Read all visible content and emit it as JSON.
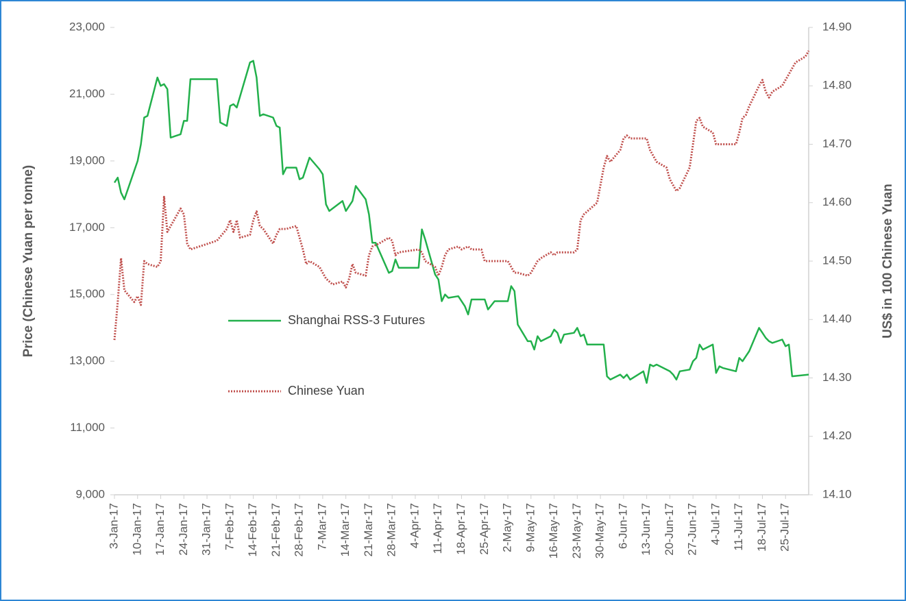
{
  "chart_data": {
    "type": "line",
    "y_label": "Price (Chinese Yuan per tonne)",
    "y2_label": "US$ in 100 Chinese Yuan",
    "xlim": [
      "2017-01-03",
      "2017-08-01"
    ],
    "xticks": [
      {
        "value": "2017-01-03",
        "label": "3-Jan-17"
      },
      {
        "value": "2017-01-10",
        "label": "10-Jan-17"
      },
      {
        "value": "2017-01-17",
        "label": "17-Jan-17"
      },
      {
        "value": "2017-01-24",
        "label": "24-Jan-17"
      },
      {
        "value": "2017-01-31",
        "label": "31-Jan-17"
      },
      {
        "value": "2017-02-07",
        "label": "7-Feb-17"
      },
      {
        "value": "2017-02-14",
        "label": "14-Feb-17"
      },
      {
        "value": "2017-02-21",
        "label": "21-Feb-17"
      },
      {
        "value": "2017-02-28",
        "label": "28-Feb-17"
      },
      {
        "value": "2017-03-07",
        "label": "7-Mar-17"
      },
      {
        "value": "2017-03-14",
        "label": "14-Mar-17"
      },
      {
        "value": "2017-03-21",
        "label": "21-Mar-17"
      },
      {
        "value": "2017-03-28",
        "label": "28-Mar-17"
      },
      {
        "value": "2017-04-04",
        "label": "4-Apr-17"
      },
      {
        "value": "2017-04-11",
        "label": "11-Apr-17"
      },
      {
        "value": "2017-04-18",
        "label": "18-Apr-17"
      },
      {
        "value": "2017-04-25",
        "label": "25-Apr-17"
      },
      {
        "value": "2017-05-02",
        "label": "2-May-17"
      },
      {
        "value": "2017-05-09",
        "label": "9-May-17"
      },
      {
        "value": "2017-05-16",
        "label": "16-May-17"
      },
      {
        "value": "2017-05-23",
        "label": "23-May-17"
      },
      {
        "value": "2017-05-30",
        "label": "30-May-17"
      },
      {
        "value": "2017-06-06",
        "label": "6-Jun-17"
      },
      {
        "value": "2017-06-13",
        "label": "13-Jun-17"
      },
      {
        "value": "2017-06-20",
        "label": "20-Jun-17"
      },
      {
        "value": "2017-06-27",
        "label": "27-Jun-17"
      },
      {
        "value": "2017-07-04",
        "label": "4-Jul-17"
      },
      {
        "value": "2017-07-11",
        "label": "11-Jul-17"
      },
      {
        "value": "2017-07-18",
        "label": "18-Jul-17"
      },
      {
        "value": "2017-07-25",
        "label": "25-Jul-17"
      }
    ],
    "ylim": [
      9000,
      23000
    ],
    "yticks": [
      {
        "value": 9000,
        "label": "9,000"
      },
      {
        "value": 11000,
        "label": "11,000"
      },
      {
        "value": 13000,
        "label": "13,000"
      },
      {
        "value": 15000,
        "label": "15,000"
      },
      {
        "value": 17000,
        "label": "17,000"
      },
      {
        "value": 19000,
        "label": "19,000"
      },
      {
        "value": 21000,
        "label": "21,000"
      },
      {
        "value": 23000,
        "label": "23,000"
      }
    ],
    "y2lim": [
      14.1,
      14.9
    ],
    "y2ticks": [
      {
        "value": 14.1,
        "label": "14.10"
      },
      {
        "value": 14.2,
        "label": "14.20"
      },
      {
        "value": 14.3,
        "label": "14.30"
      },
      {
        "value": 14.4,
        "label": "14.40"
      },
      {
        "value": 14.5,
        "label": "14.50"
      },
      {
        "value": 14.6,
        "label": "14.60"
      },
      {
        "value": 14.7,
        "label": "14.70"
      },
      {
        "value": 14.8,
        "label": "14.80"
      },
      {
        "value": 14.9,
        "label": "14.90"
      }
    ],
    "grid": false,
    "legend": "center-left",
    "series": [
      {
        "name": "Shanghai RSS-3 Futures",
        "color": "#22b04b",
        "style": "solid",
        "axis": "y",
        "x": [
          "2017-01-03",
          "2017-01-04",
          "2017-01-05",
          "2017-01-06",
          "2017-01-10",
          "2017-01-11",
          "2017-01-12",
          "2017-01-13",
          "2017-01-16",
          "2017-01-17",
          "2017-01-18",
          "2017-01-19",
          "2017-01-20",
          "2017-01-23",
          "2017-01-24",
          "2017-01-25",
          "2017-01-26",
          "2017-02-03",
          "2017-02-04",
          "2017-02-06",
          "2017-02-07",
          "2017-02-08",
          "2017-02-09",
          "2017-02-13",
          "2017-02-14",
          "2017-02-15",
          "2017-02-16",
          "2017-02-17",
          "2017-02-20",
          "2017-02-21",
          "2017-02-22",
          "2017-02-23",
          "2017-02-24",
          "2017-02-27",
          "2017-02-28",
          "2017-03-01",
          "2017-03-03",
          "2017-03-06",
          "2017-03-07",
          "2017-03-08",
          "2017-03-09",
          "2017-03-13",
          "2017-03-14",
          "2017-03-16",
          "2017-03-17",
          "2017-03-20",
          "2017-03-21",
          "2017-03-22",
          "2017-03-23",
          "2017-03-27",
          "2017-03-28",
          "2017-03-29",
          "2017-03-30",
          "2017-04-05",
          "2017-04-06",
          "2017-04-07",
          "2017-04-10",
          "2017-04-11",
          "2017-04-12",
          "2017-04-13",
          "2017-04-14",
          "2017-04-17",
          "2017-04-19",
          "2017-04-20",
          "2017-04-21",
          "2017-04-25",
          "2017-04-26",
          "2017-04-28",
          "2017-05-02",
          "2017-05-03",
          "2017-05-04",
          "2017-05-05",
          "2017-05-08",
          "2017-05-09",
          "2017-05-10",
          "2017-05-11",
          "2017-05-12",
          "2017-05-15",
          "2017-05-16",
          "2017-05-17",
          "2017-05-18",
          "2017-05-19",
          "2017-05-22",
          "2017-05-23",
          "2017-05-24",
          "2017-05-25",
          "2017-05-26",
          "2017-05-31",
          "2017-06-01",
          "2017-06-02",
          "2017-06-05",
          "2017-06-06",
          "2017-06-07",
          "2017-06-08",
          "2017-06-12",
          "2017-06-13",
          "2017-06-14",
          "2017-06-15",
          "2017-06-16",
          "2017-06-20",
          "2017-06-21",
          "2017-06-22",
          "2017-06-23",
          "2017-06-26",
          "2017-06-27",
          "2017-06-28",
          "2017-06-29",
          "2017-06-30",
          "2017-07-03",
          "2017-07-04",
          "2017-07-05",
          "2017-07-06",
          "2017-07-10",
          "2017-07-11",
          "2017-07-12",
          "2017-07-13",
          "2017-07-14",
          "2017-07-17",
          "2017-07-18",
          "2017-07-19",
          "2017-07-20",
          "2017-07-21",
          "2017-07-24",
          "2017-07-25",
          "2017-07-26",
          "2017-07-27",
          "2017-08-01"
        ],
        "values": [
          18350,
          18500,
          18050,
          17850,
          19000,
          19500,
          20300,
          20350,
          21500,
          21250,
          21300,
          21150,
          19700,
          19800,
          20200,
          20200,
          21450,
          21450,
          20150,
          20050,
          20650,
          20700,
          20600,
          21950,
          22000,
          21500,
          20350,
          20400,
          20300,
          20050,
          20000,
          18600,
          18800,
          18800,
          18450,
          18500,
          19100,
          18750,
          18600,
          17700,
          17500,
          17800,
          17500,
          17800,
          18250,
          17850,
          17400,
          16550,
          16550,
          15650,
          15700,
          16050,
          15800,
          15800,
          16950,
          16650,
          15600,
          15450,
          14800,
          15000,
          14900,
          14950,
          14650,
          14400,
          14850,
          14850,
          14550,
          14800,
          14800,
          15250,
          15100,
          14100,
          13600,
          13600,
          13350,
          13750,
          13600,
          13750,
          13950,
          13850,
          13550,
          13800,
          13850,
          14000,
          13750,
          13800,
          13500,
          13500,
          12550,
          12450,
          12600,
          12500,
          12600,
          12450,
          12700,
          12350,
          12900,
          12850,
          12900,
          12700,
          12600,
          12450,
          12700,
          12750,
          13000,
          13100,
          13500,
          13350,
          13500,
          12650,
          12850,
          12800,
          12700,
          13100,
          13000,
          13150,
          13300,
          14000,
          13850,
          13700,
          13600,
          13550,
          13650,
          13450,
          13500,
          12550,
          12600
        ]
      },
      {
        "name": "Chinese Yuan",
        "color": "#c0504d",
        "style": "dotted",
        "axis": "y2",
        "x": [
          "2017-01-03",
          "2017-01-04",
          "2017-01-05",
          "2017-01-06",
          "2017-01-09",
          "2017-01-10",
          "2017-01-11",
          "2017-01-12",
          "2017-01-13",
          "2017-01-16",
          "2017-01-17",
          "2017-01-18",
          "2017-01-19",
          "2017-01-20",
          "2017-01-23",
          "2017-01-24",
          "2017-01-25",
          "2017-01-26",
          "2017-02-03",
          "2017-02-06",
          "2017-02-07",
          "2017-02-08",
          "2017-02-09",
          "2017-02-10",
          "2017-02-13",
          "2017-02-14",
          "2017-02-15",
          "2017-02-16",
          "2017-02-17",
          "2017-02-20",
          "2017-02-21",
          "2017-02-22",
          "2017-02-24",
          "2017-02-27",
          "2017-02-28",
          "2017-03-01",
          "2017-03-02",
          "2017-03-03",
          "2017-03-06",
          "2017-03-08",
          "2017-03-10",
          "2017-03-13",
          "2017-03-14",
          "2017-03-15",
          "2017-03-16",
          "2017-03-17",
          "2017-03-20",
          "2017-03-21",
          "2017-03-22",
          "2017-03-24",
          "2017-03-27",
          "2017-03-28",
          "2017-03-29",
          "2017-03-30",
          "2017-04-05",
          "2017-04-06",
          "2017-04-07",
          "2017-04-10",
          "2017-04-11",
          "2017-04-12",
          "2017-04-13",
          "2017-04-14",
          "2017-04-17",
          "2017-04-18",
          "2017-04-20",
          "2017-04-21",
          "2017-04-24",
          "2017-04-25",
          "2017-04-26",
          "2017-04-28",
          "2017-05-02",
          "2017-05-03",
          "2017-05-04",
          "2017-05-05",
          "2017-05-08",
          "2017-05-09",
          "2017-05-10",
          "2017-05-11",
          "2017-05-12",
          "2017-05-15",
          "2017-05-16",
          "2017-05-17",
          "2017-05-19",
          "2017-05-22",
          "2017-05-23",
          "2017-05-24",
          "2017-05-25",
          "2017-05-26",
          "2017-05-29",
          "2017-05-30",
          "2017-05-31",
          "2017-06-01",
          "2017-06-02",
          "2017-06-05",
          "2017-06-06",
          "2017-06-07",
          "2017-06-08",
          "2017-06-12",
          "2017-06-13",
          "2017-06-14",
          "2017-06-15",
          "2017-06-16",
          "2017-06-19",
          "2017-06-20",
          "2017-06-21",
          "2017-06-22",
          "2017-06-23",
          "2017-06-26",
          "2017-06-27",
          "2017-06-28",
          "2017-06-29",
          "2017-06-30",
          "2017-07-03",
          "2017-07-04",
          "2017-07-06",
          "2017-07-10",
          "2017-07-11",
          "2017-07-12",
          "2017-07-13",
          "2017-07-14",
          "2017-07-17",
          "2017-07-18",
          "2017-07-19",
          "2017-07-20",
          "2017-07-21",
          "2017-07-24",
          "2017-07-25",
          "2017-07-26",
          "2017-07-27",
          "2017-07-28",
          "2017-07-31",
          "2017-08-01"
        ],
        "values": [
          14.365,
          14.43,
          14.505,
          14.45,
          14.43,
          14.44,
          14.425,
          14.5,
          14.495,
          14.49,
          14.5,
          14.61,
          14.55,
          14.56,
          14.59,
          14.58,
          14.53,
          14.52,
          14.535,
          14.555,
          14.57,
          14.55,
          14.57,
          14.54,
          14.545,
          14.57,
          14.585,
          14.56,
          14.555,
          14.53,
          14.545,
          14.555,
          14.555,
          14.56,
          14.54,
          14.52,
          14.495,
          14.5,
          14.49,
          14.47,
          14.46,
          14.465,
          14.455,
          14.47,
          14.495,
          14.48,
          14.475,
          14.51,
          14.525,
          14.53,
          14.54,
          14.535,
          14.51,
          14.515,
          14.52,
          14.515,
          14.5,
          14.49,
          14.475,
          14.49,
          14.51,
          14.52,
          14.525,
          14.52,
          14.525,
          14.52,
          14.52,
          14.5,
          14.5,
          14.5,
          14.5,
          14.49,
          14.48,
          14.48,
          14.475,
          14.48,
          14.49,
          14.5,
          14.505,
          14.515,
          14.51,
          14.515,
          14.515,
          14.515,
          14.52,
          14.57,
          14.58,
          14.585,
          14.6,
          14.63,
          14.66,
          14.68,
          14.67,
          14.69,
          14.71,
          14.715,
          14.71,
          14.71,
          14.71,
          14.69,
          14.68,
          14.67,
          14.66,
          14.64,
          14.63,
          14.62,
          14.625,
          14.66,
          14.7,
          14.74,
          14.745,
          14.73,
          14.72,
          14.7,
          14.7,
          14.7,
          14.72,
          14.745,
          14.75,
          14.765,
          14.8,
          14.81,
          14.79,
          14.78,
          14.79,
          14.8,
          14.81,
          14.82,
          14.83,
          14.84,
          14.85,
          14.86
        ]
      }
    ]
  }
}
